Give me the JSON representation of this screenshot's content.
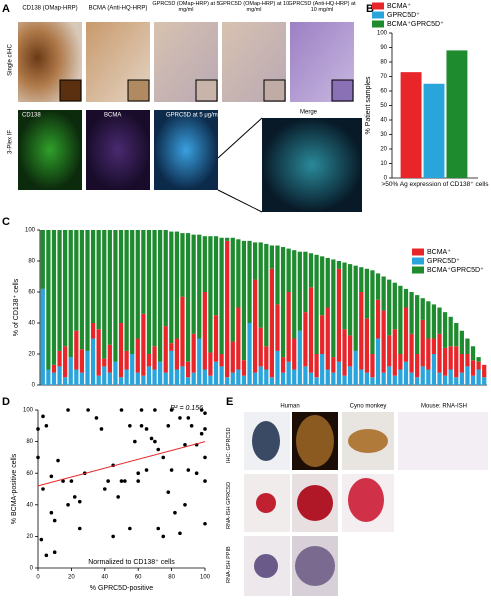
{
  "panel_labels": [
    "A",
    "B",
    "C",
    "D",
    "E"
  ],
  "panel_a": {
    "row_labels": [
      "Single cIHC",
      "3-Plex IF"
    ],
    "cihc_headers": [
      "CD138 (OMap-HRP)",
      "BCMA (Anti-HQ-HRP)",
      "GPRC5D (OMap-HRP) at 5 mg/ml",
      "GPRC5D (OMap-HRP) at 10 mg/ml",
      "GPRC5D (Anti-HQ-HRP) at 10 mg/ml"
    ],
    "if_labels": [
      "CD138",
      "BCMA",
      "GPRC5D at 5 μg/ml",
      "Merge"
    ]
  },
  "panel_e": {
    "column_headers": [
      "Human",
      "Cyno monkey",
      "Mouse: RNA-ISH"
    ],
    "row_labels": [
      "IHC: GPRC5D",
      "RNA-ISH GPRC5D",
      "RNA-ISH PPIB"
    ]
  },
  "chart_data": [
    {
      "type": "bar",
      "ylabel": "% Patient samples",
      "categories": [
        ">50% Ag expression of CD138⁺ cells"
      ],
      "series": [
        {
          "name": "BCMA⁺",
          "color": "#e8262a",
          "values": [
            73
          ]
        },
        {
          "name": "GPRC5D⁺",
          "color": "#2aa5dc",
          "values": [
            65
          ]
        },
        {
          "name": "BCMA⁺GPRC5D⁺",
          "color": "#1e8c2e",
          "values": [
            88
          ]
        }
      ],
      "ylim": [
        0,
        100
      ],
      "yticks": [
        0,
        10,
        20,
        30,
        40,
        50,
        60,
        70,
        80,
        90,
        100
      ]
    },
    {
      "type": "stacked_bar",
      "ylabel": "% of CD138⁺ cells",
      "series": [
        {
          "name": "BCMA⁺",
          "color": "#e8262a",
          "values": [
            0,
            0,
            5,
            10,
            20,
            0,
            25,
            15,
            0,
            10,
            30,
            5,
            18,
            0,
            35,
            12,
            0,
            22,
            40,
            8,
            15,
            0,
            30,
            5,
            20,
            45,
            10,
            25,
            0,
            50,
            15,
            30,
            8,
            88,
            20,
            40,
            10,
            0,
            60,
            25,
            15,
            70,
            30,
            10,
            45,
            20,
            0,
            35,
            55,
            15,
            25,
            40,
            10,
            60,
            30,
            20,
            0,
            50,
            35,
            15,
            25,
            40,
            20,
            30,
            10,
            35,
            25,
            15,
            30,
            20,
            10,
            25,
            18,
            15,
            20,
            12,
            8,
            10,
            5,
            8
          ]
        },
        {
          "name": "GPRC5D⁺",
          "color": "#2aa5dc",
          "values": [
            62,
            10,
            8,
            12,
            5,
            18,
            10,
            8,
            22,
            30,
            6,
            12,
            8,
            15,
            5,
            10,
            20,
            8,
            6,
            12,
            10,
            15,
            8,
            22,
            10,
            12,
            5,
            8,
            30,
            10,
            6,
            15,
            12,
            5,
            8,
            10,
            6,
            40,
            8,
            12,
            10,
            5,
            22,
            8,
            15,
            10,
            35,
            12,
            8,
            5,
            20,
            10,
            8,
            15,
            6,
            12,
            22,
            10,
            8,
            5,
            30,
            8,
            12,
            6,
            10,
            15,
            8,
            5,
            12,
            10,
            20,
            8,
            6,
            10,
            5,
            8,
            12,
            6,
            10,
            5
          ]
        },
        {
          "name": "BCMA⁺GPRC5D⁺",
          "color": "#1e8c2e",
          "values": [
            38,
            90,
            87,
            78,
            75,
            82,
            65,
            77,
            78,
            60,
            64,
            83,
            74,
            85,
            60,
            78,
            80,
            70,
            54,
            80,
            75,
            85,
            62,
            72,
            69,
            41,
            83,
            64,
            67,
            36,
            75,
            51,
            75,
            2,
            67,
            44,
            77,
            53,
            24,
            55,
            66,
            15,
            38,
            71,
            28,
            57,
            51,
            39,
            22,
            64,
            38,
            32,
            63,
            5,
            43,
            46,
            55,
            16,
            32,
            54,
            17,
            22,
            36,
            30,
            44,
            12,
            27,
            38,
            14,
            24,
            22,
            17,
            23,
            19,
            15,
            15,
            10,
            9,
            3,
            0
          ]
        }
      ],
      "ylim": [
        0,
        100
      ],
      "yticks": [
        0,
        20,
        40,
        60,
        80,
        100
      ]
    },
    {
      "type": "scatter",
      "xlabel": "% GPRC5D-positive",
      "ylabel": "% BCMA-positive cells",
      "annotations": [
        "R² = 0.156",
        "Normalized to CD138⁺ cells"
      ],
      "color": "#000000",
      "x": [
        0,
        0,
        2,
        3,
        3,
        5,
        5,
        8,
        8,
        10,
        10,
        12,
        15,
        18,
        18,
        20,
        22,
        25,
        25,
        28,
        30,
        35,
        38,
        40,
        42,
        45,
        45,
        48,
        50,
        50,
        52,
        55,
        55,
        58,
        60,
        60,
        62,
        62,
        65,
        65,
        68,
        70,
        70,
        72,
        72,
        75,
        75,
        78,
        78,
        80,
        80,
        82,
        85,
        85,
        88,
        88,
        90,
        90,
        92,
        95,
        95,
        98,
        98,
        100,
        100,
        100,
        100,
        100
      ],
      "y": [
        88,
        70,
        18,
        96,
        50,
        8,
        90,
        35,
        58,
        30,
        10,
        68,
        55,
        40,
        100,
        55,
        45,
        25,
        42,
        60,
        100,
        95,
        88,
        50,
        55,
        20,
        65,
        45,
        100,
        55,
        55,
        90,
        25,
        80,
        60,
        55,
        100,
        90,
        88,
        62,
        82,
        100,
        80,
        75,
        25,
        20,
        70,
        90,
        48,
        100,
        62,
        35,
        95,
        22,
        78,
        40,
        95,
        62,
        90,
        60,
        78,
        100,
        85,
        98,
        70,
        55,
        28,
        88
      ],
      "trendline": {
        "color": "#e8262a",
        "x": [
          0,
          100
        ],
        "y": [
          52,
          80
        ]
      },
      "xlim": [
        0,
        100
      ],
      "xticks": [
        0,
        20,
        40,
        60,
        80,
        100
      ],
      "ylim": [
        0,
        100
      ],
      "yticks": [
        0,
        20,
        40,
        60,
        80,
        100
      ]
    }
  ]
}
